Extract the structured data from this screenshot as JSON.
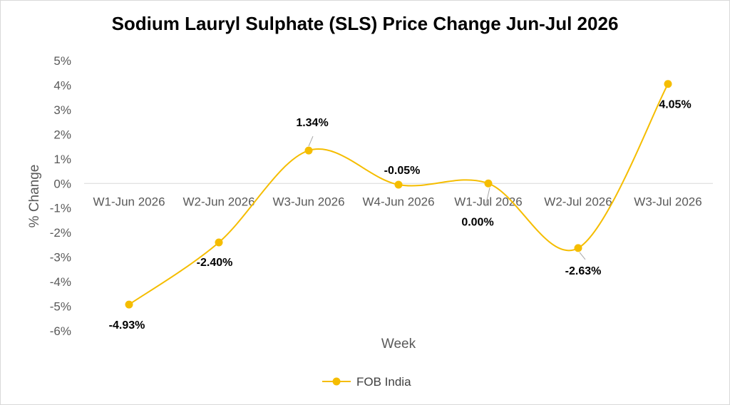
{
  "chart_data": {
    "type": "line",
    "title": "Sodium Lauryl Sulphate (SLS) Price Change Jun-Jul 2026",
    "xlabel": "Week",
    "ylabel": "% Change",
    "categories": [
      "W1-Jun 2026",
      "W2-Jun 2026",
      "W3-Jun 2026",
      "W4-Jun 2026",
      "W1-Jul 2026",
      "W2-Jul 2026",
      "W3-Jul 2026"
    ],
    "series": [
      {
        "name": "FOB India",
        "values": [
          -4.93,
          -2.4,
          1.34,
          -0.05,
          0.0,
          -2.63,
          4.05
        ],
        "labels": [
          "-4.93%",
          "-2.40%",
          "1.34%",
          "-0.05%",
          "0.00%",
          "-2.63%",
          "4.05%"
        ],
        "color": "#F5BD00",
        "smoothed": true
      }
    ],
    "ylim": [
      -6,
      5
    ],
    "yticks": [
      5,
      4,
      3,
      2,
      1,
      0,
      -1,
      -2,
      -3,
      -4,
      -5,
      -6
    ],
    "ytick_labels": [
      "5%",
      "4%",
      "3%",
      "2%",
      "1%",
      "0%",
      "-1%",
      "-2%",
      "-3%",
      "-4%",
      "-5%",
      "-6%"
    ],
    "grid": false,
    "legend_position": "bottom",
    "zero_line_color": "#d9d9d9"
  }
}
